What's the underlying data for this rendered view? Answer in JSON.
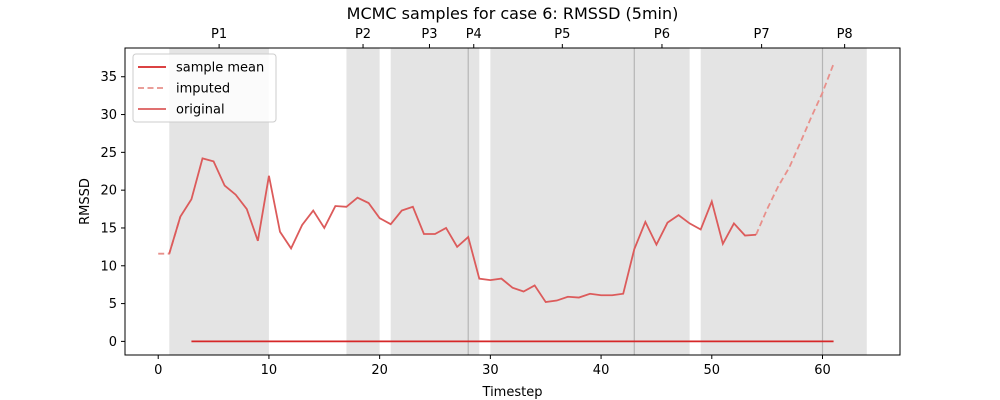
{
  "chart_data": {
    "type": "line",
    "title": "MCMC samples for case 6: RMSSD (5min)",
    "xlabel": "Timestep",
    "ylabel": "RMSSD",
    "xlim": [
      -3,
      67
    ],
    "ylim": [
      -1.8,
      38.8
    ],
    "x_ticks": [
      0,
      10,
      20,
      30,
      40,
      50,
      60
    ],
    "y_ticks": [
      0,
      5,
      10,
      15,
      20,
      25,
      30,
      35
    ],
    "grid": false,
    "legend_position": "top-left",
    "shaded_periods": [
      {
        "label": "P1",
        "start": 1,
        "end": 10
      },
      {
        "label": "P2",
        "start": 17,
        "end": 20
      },
      {
        "label": "P3",
        "start": 21,
        "end": 28
      },
      {
        "label": "P4",
        "start": 28,
        "end": 29
      },
      {
        "label": "P5",
        "start": 30,
        "end": 43
      },
      {
        "label": "P6",
        "start": 43,
        "end": 48
      },
      {
        "label": "P7",
        "start": 49,
        "end": 60
      },
      {
        "label": "P8",
        "start": 60,
        "end": 64
      }
    ],
    "series": [
      {
        "name": "sample mean",
        "color": "#d62728",
        "style": "solid",
        "x": [
          3,
          61
        ],
        "values": [
          0,
          0
        ]
      },
      {
        "name": "imputed",
        "color": "#e8908b",
        "style": "dashed",
        "segments": [
          {
            "x": [
              0,
              1,
              2
            ],
            "values": [
              11.6,
              11.6,
              16.5
            ]
          },
          {
            "x": [
              54,
              55,
              56,
              57,
              58,
              59,
              60,
              61
            ],
            "values": [
              14.1,
              17.5,
              20.5,
              23.0,
              26.3,
              29.7,
              32.9,
              36.7
            ]
          }
        ]
      },
      {
        "name": "original",
        "color": "#dc5b5b",
        "style": "solid",
        "x": [
          1,
          2,
          3,
          4,
          5,
          6,
          7,
          8,
          9,
          10,
          11,
          12,
          13,
          14,
          15,
          16,
          17,
          18,
          19,
          20,
          21,
          22,
          23,
          24,
          25,
          26,
          27,
          28,
          29,
          30,
          31,
          32,
          33,
          34,
          35,
          36,
          37,
          38,
          39,
          40,
          41,
          42,
          43,
          44,
          45,
          46,
          47,
          48,
          49,
          50,
          51,
          52,
          53,
          54
        ],
        "values": [
          11.6,
          16.5,
          18.8,
          24.2,
          23.8,
          20.6,
          19.4,
          17.5,
          13.3,
          21.9,
          14.5,
          12.3,
          15.4,
          17.3,
          15.0,
          17.9,
          17.8,
          19.0,
          18.3,
          16.3,
          15.5,
          17.3,
          17.8,
          14.2,
          14.2,
          15.0,
          12.5,
          13.8,
          8.3,
          8.1,
          8.3,
          7.1,
          6.6,
          7.4,
          5.2,
          5.4,
          5.9,
          5.8,
          6.3,
          6.1,
          6.1,
          6.3,
          12.2,
          15.8,
          12.8,
          15.7,
          16.7,
          15.6,
          14.8,
          18.5,
          12.9,
          15.6,
          14.0,
          14.1
        ]
      }
    ]
  }
}
